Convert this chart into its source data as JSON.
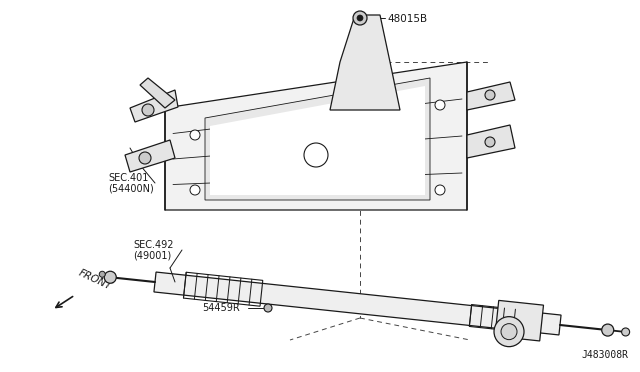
{
  "bg_color": "#ffffff",
  "line_color": "#1a1a1a",
  "dashed_color": "#444444",
  "label_48015B": "48015B",
  "label_SEC401": "SEC.401",
  "label_54400N": "(54400N)",
  "label_SEC492": "SEC.492",
  "label_49001": "(49001)",
  "label_54459R": "54459R",
  "label_FRONT": "FRONT",
  "label_diagram_id": "J483008R",
  "subframe_color": "#f0f0f0",
  "rack_color": "#f0f0f0"
}
